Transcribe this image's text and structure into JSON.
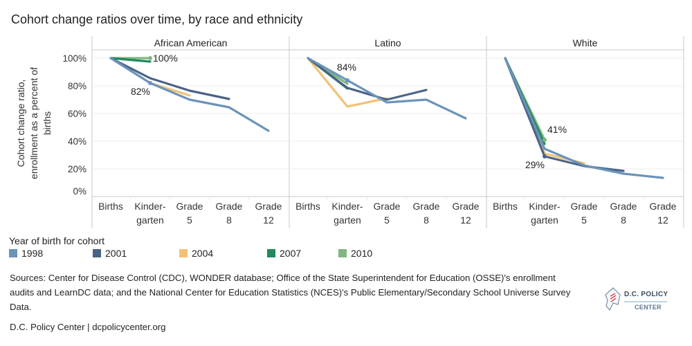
{
  "title": "Cohort change ratios over time, by race and ethnicity",
  "legend": {
    "title": "Year of birth for cohort",
    "items": [
      {
        "label": "1998",
        "color": "#6b93bb"
      },
      {
        "label": "2001",
        "color": "#4a6386"
      },
      {
        "label": "2004",
        "color": "#f2c272"
      },
      {
        "label": "2007",
        "color": "#1f8a5e"
      },
      {
        "label": "2010",
        "color": "#7fb77e"
      }
    ]
  },
  "sources": "Sources: Center for Disease Control (CDC), WONDER database; Office of the State Superintendent for Education (OSSE)'s enrollment audits and LearnDC data; and the National Center for Education Statistics (NCES)'s Public Elementary/Secondary School Universe Survey Data.",
  "footer": "D.C. Policy Center | dcpolicycenter.org",
  "logo": {
    "line1": "D.C. POLICY",
    "line2": "CENTER"
  },
  "chart_data": {
    "type": "line",
    "title": "Cohort change ratios over time, by race and ethnicity",
    "ylabel_lines": [
      "Cohort change ratio,",
      "enrollment as a percent of",
      "births"
    ],
    "xlabel": "",
    "ylim": [
      0,
      100
    ],
    "yticks": [
      0,
      20,
      40,
      60,
      80,
      100
    ],
    "ytick_labels": [
      "0%",
      "20%",
      "40%",
      "60%",
      "80%",
      "100%"
    ],
    "grid": true,
    "legend_position": "bottom-left",
    "categories": [
      "Births",
      "Kindergarten",
      "Grade 5",
      "Grade 8",
      "Grade 12"
    ],
    "category_label_lines": [
      [
        "Births"
      ],
      [
        "Kinder-",
        "garten"
      ],
      [
        "Grade",
        "5"
      ],
      [
        "Grade",
        "8"
      ],
      [
        "Grade",
        "12"
      ]
    ],
    "panels": [
      {
        "name": "African American",
        "series": [
          {
            "name": "1998",
            "values": [
              100,
              82,
              70,
              64.5,
              47.5
            ]
          },
          {
            "name": "2001",
            "values": [
              100,
              85.5,
              76.5,
              70.5,
              null
            ]
          },
          {
            "name": "2004",
            "values": [
              100,
              82,
              73,
              null,
              null
            ]
          },
          {
            "name": "2007",
            "values": [
              100,
              97.5,
              null,
              null,
              null
            ]
          },
          {
            "name": "2010",
            "values": [
              100,
              100,
              null,
              null,
              null
            ]
          }
        ],
        "annotations": [
          {
            "text": "100%",
            "series": "2010",
            "category": "Kindergarten",
            "placement": "right"
          },
          {
            "text": "82%",
            "series": "1998",
            "category": "Kindergarten",
            "placement": "below-left"
          }
        ]
      },
      {
        "name": "Latino",
        "series": [
          {
            "name": "1998",
            "values": [
              100,
              84,
              68,
              70,
              56.5
            ]
          },
          {
            "name": "2001",
            "values": [
              100,
              78.5,
              70,
              77,
              null
            ]
          },
          {
            "name": "2004",
            "values": [
              100,
              65,
              71,
              null,
              null
            ]
          },
          {
            "name": "2007",
            "values": [
              100,
              78,
              null,
              null,
              null
            ]
          },
          {
            "name": "2010",
            "values": [
              100,
              81.5,
              null,
              null,
              null
            ]
          }
        ],
        "annotations": [
          {
            "text": "84%",
            "series": "1998",
            "category": "Kindergarten",
            "placement": "above"
          }
        ]
      },
      {
        "name": "White",
        "series": [
          {
            "name": "1998",
            "values": [
              100,
              34.5,
              22.5,
              16.5,
              13.5
            ]
          },
          {
            "name": "2001",
            "values": [
              100,
              29,
              22,
              18.5,
              null
            ]
          },
          {
            "name": "2004",
            "values": [
              100,
              31,
              24,
              null,
              null
            ]
          },
          {
            "name": "2007",
            "values": [
              100,
              38,
              null,
              null,
              null
            ]
          },
          {
            "name": "2010",
            "values": [
              100,
              41,
              null,
              null,
              null
            ]
          }
        ],
        "annotations": [
          {
            "text": "41%",
            "series": "2010",
            "category": "Kindergarten",
            "placement": "above-right"
          },
          {
            "text": "29%",
            "series": "2001",
            "category": "Kindergarten",
            "placement": "below-left"
          }
        ]
      }
    ]
  }
}
